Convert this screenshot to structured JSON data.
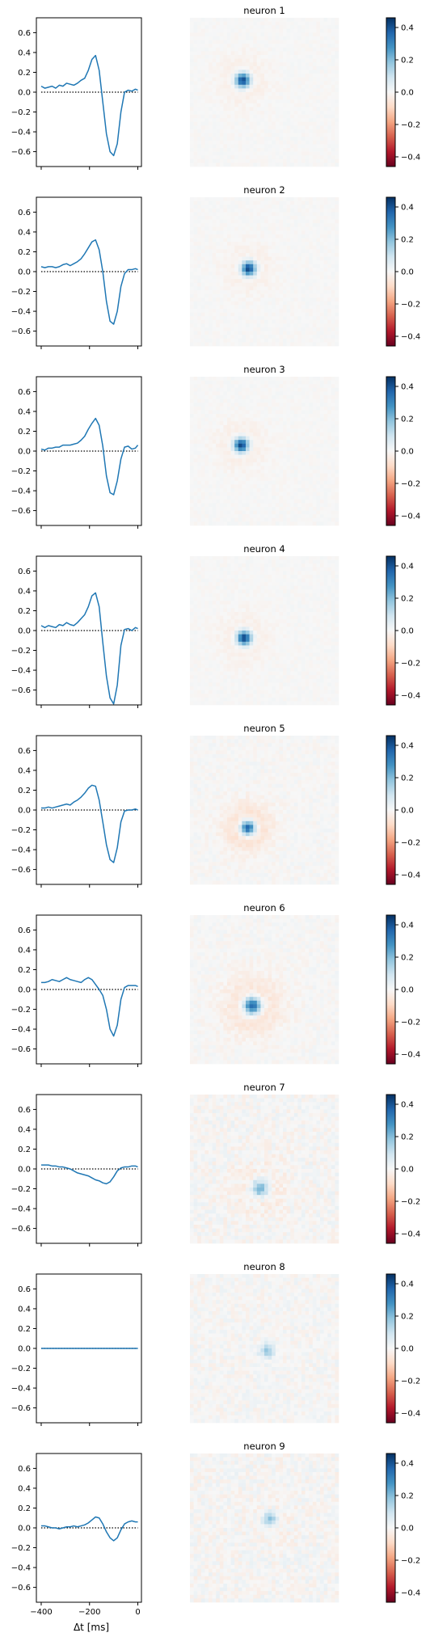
{
  "chart_data": {
    "type": "line",
    "layout": "grid of 9 rows: temporal kernel line plot, spatial receptive field heatmap, colorbar",
    "xlabel": "Δt [ms]",
    "x_ticks": [
      -400,
      -200,
      0
    ],
    "xlim": [
      -420,
      15
    ],
    "y_ticks": [
      0.6,
      0.4,
      0.2,
      0.0,
      -0.2,
      -0.4,
      -0.6
    ],
    "ylim": [
      -0.75,
      0.75
    ],
    "baseline": 0.0,
    "baseline_style": "dotted",
    "line_color": "#1f77b4",
    "colormap": "RdBu",
    "colormap_low": "#67001f",
    "colormap_mid": "#f7f7f7",
    "colormap_high": "#053061",
    "colorbar_ticks": [
      0.4,
      0.2,
      0.0,
      -0.2,
      -0.4
    ],
    "colorbar_range": [
      -0.46,
      0.46
    ],
    "panels": [
      {
        "title": "neuron 1",
        "temporal": {
          "x": [
            -400,
            -385,
            -370,
            -355,
            -340,
            -325,
            -310,
            -295,
            -280,
            -265,
            -250,
            -235,
            -220,
            -205,
            -190,
            -175,
            -160,
            -145,
            -130,
            -115,
            -100,
            -85,
            -70,
            -55,
            -40,
            -25,
            -10,
            0
          ],
          "y": [
            0.06,
            0.04,
            0.05,
            0.06,
            0.04,
            0.07,
            0.06,
            0.09,
            0.08,
            0.07,
            0.09,
            0.12,
            0.14,
            0.22,
            0.33,
            0.37,
            0.22,
            -0.1,
            -0.42,
            -0.6,
            -0.64,
            -0.52,
            -0.2,
            0.0,
            0.02,
            0.01,
            0.03,
            0.02
          ]
        },
        "spatial": {
          "cx": 0.355,
          "cy": 0.42,
          "amp": 0.46,
          "sigma": 0.035,
          "surround": 0.04,
          "noise": 0.012
        }
      },
      {
        "title": "neuron 2",
        "temporal": {
          "x": [
            -400,
            -385,
            -370,
            -355,
            -340,
            -325,
            -310,
            -295,
            -280,
            -265,
            -250,
            -235,
            -220,
            -205,
            -190,
            -175,
            -160,
            -145,
            -130,
            -115,
            -100,
            -85,
            -70,
            -55,
            -40,
            -25,
            -10,
            0
          ],
          "y": [
            0.05,
            0.04,
            0.05,
            0.05,
            0.04,
            0.05,
            0.07,
            0.08,
            0.06,
            0.08,
            0.1,
            0.13,
            0.18,
            0.24,
            0.3,
            0.32,
            0.22,
            0.0,
            -0.3,
            -0.5,
            -0.53,
            -0.4,
            -0.15,
            -0.02,
            0.02,
            0.02,
            0.03,
            0.02
          ]
        },
        "spatial": {
          "cx": 0.395,
          "cy": 0.48,
          "amp": 0.46,
          "sigma": 0.035,
          "surround": 0.04,
          "noise": 0.012
        }
      },
      {
        "title": "neuron 3",
        "temporal": {
          "x": [
            -400,
            -385,
            -370,
            -355,
            -340,
            -325,
            -310,
            -295,
            -280,
            -265,
            -250,
            -235,
            -220,
            -205,
            -190,
            -175,
            -160,
            -145,
            -130,
            -115,
            -100,
            -85,
            -70,
            -55,
            -40,
            -25,
            -10,
            0
          ],
          "y": [
            0.02,
            0.01,
            0.03,
            0.03,
            0.04,
            0.04,
            0.06,
            0.06,
            0.06,
            0.07,
            0.08,
            0.11,
            0.15,
            0.22,
            0.28,
            0.33,
            0.26,
            0.05,
            -0.25,
            -0.42,
            -0.44,
            -0.3,
            -0.08,
            0.04,
            0.05,
            0.02,
            0.03,
            0.06
          ]
        },
        "spatial": {
          "cx": 0.345,
          "cy": 0.46,
          "amp": 0.46,
          "sigma": 0.035,
          "surround": 0.04,
          "noise": 0.012
        }
      },
      {
        "title": "neuron 4",
        "temporal": {
          "x": [
            -400,
            -385,
            -370,
            -355,
            -340,
            -325,
            -310,
            -295,
            -280,
            -265,
            -250,
            -235,
            -220,
            -205,
            -190,
            -175,
            -160,
            -145,
            -130,
            -115,
            -100,
            -85,
            -70,
            -55,
            -40,
            -25,
            -10,
            0
          ],
          "y": [
            0.05,
            0.03,
            0.05,
            0.04,
            0.03,
            0.06,
            0.05,
            0.08,
            0.06,
            0.05,
            0.08,
            0.12,
            0.16,
            0.24,
            0.35,
            0.38,
            0.24,
            -0.12,
            -0.46,
            -0.68,
            -0.74,
            -0.55,
            -0.15,
            0.01,
            0.02,
            0.0,
            0.03,
            0.02
          ]
        },
        "spatial": {
          "cx": 0.365,
          "cy": 0.55,
          "amp": 0.46,
          "sigma": 0.035,
          "surround": 0.04,
          "noise": 0.012
        }
      },
      {
        "title": "neuron 5",
        "temporal": {
          "x": [
            -400,
            -385,
            -370,
            -355,
            -340,
            -325,
            -310,
            -295,
            -280,
            -265,
            -250,
            -235,
            -220,
            -205,
            -190,
            -175,
            -160,
            -145,
            -130,
            -115,
            -100,
            -85,
            -70,
            -55,
            -40,
            -25,
            -10,
            0
          ],
          "y": [
            0.02,
            0.02,
            0.03,
            0.02,
            0.03,
            0.04,
            0.05,
            0.06,
            0.05,
            0.08,
            0.1,
            0.13,
            0.17,
            0.22,
            0.25,
            0.24,
            0.1,
            -0.12,
            -0.35,
            -0.5,
            -0.53,
            -0.38,
            -0.12,
            -0.01,
            0.0,
            0.0,
            0.01,
            0.0
          ]
        },
        "spatial": {
          "cx": 0.39,
          "cy": 0.62,
          "amp": 0.46,
          "sigma": 0.035,
          "surround": 0.09,
          "noise": 0.02
        }
      },
      {
        "title": "neuron 6",
        "temporal": {
          "x": [
            -400,
            -385,
            -370,
            -355,
            -340,
            -325,
            -310,
            -295,
            -280,
            -265,
            -250,
            -235,
            -220,
            -205,
            -190,
            -175,
            -160,
            -145,
            -130,
            -115,
            -100,
            -85,
            -70,
            -55,
            -40,
            -25,
            -10,
            0
          ],
          "y": [
            0.07,
            0.07,
            0.08,
            0.1,
            0.09,
            0.08,
            0.1,
            0.12,
            0.1,
            0.09,
            0.08,
            0.07,
            0.1,
            0.12,
            0.1,
            0.05,
            0.0,
            -0.06,
            -0.2,
            -0.4,
            -0.47,
            -0.36,
            -0.1,
            0.02,
            0.04,
            0.04,
            0.04,
            0.03
          ]
        },
        "spatial": {
          "cx": 0.42,
          "cy": 0.61,
          "amp": 0.44,
          "sigma": 0.042,
          "surround": 0.08,
          "noise": 0.02
        }
      },
      {
        "title": "neuron 7",
        "temporal": {
          "x": [
            -400,
            -385,
            -370,
            -355,
            -340,
            -325,
            -310,
            -295,
            -280,
            -265,
            -250,
            -235,
            -220,
            -205,
            -190,
            -175,
            -160,
            -145,
            -130,
            -115,
            -100,
            -85,
            -70,
            -55,
            -40,
            -25,
            -10,
            0
          ],
          "y": [
            0.04,
            0.04,
            0.04,
            0.03,
            0.03,
            0.02,
            0.02,
            0.01,
            0.0,
            -0.02,
            -0.04,
            -0.05,
            -0.06,
            -0.07,
            -0.09,
            -0.11,
            -0.12,
            -0.14,
            -0.15,
            -0.13,
            -0.08,
            -0.02,
            0.01,
            0.02,
            0.02,
            0.03,
            0.03,
            0.02
          ]
        },
        "spatial": {
          "cx": 0.47,
          "cy": 0.63,
          "amp": 0.26,
          "sigma": 0.04,
          "surround": 0.04,
          "noise": 0.035
        }
      },
      {
        "title": "neuron 8",
        "temporal": {
          "x": [
            -400,
            -385,
            -370,
            -355,
            -340,
            -325,
            -310,
            -295,
            -280,
            -265,
            -250,
            -235,
            -220,
            -205,
            -190,
            -175,
            -160,
            -145,
            -130,
            -115,
            -100,
            -85,
            -70,
            -55,
            -40,
            -25,
            -10,
            0
          ],
          "y": [
            0.0,
            0.0,
            0.0,
            0.0,
            0.0,
            0.0,
            0.0,
            0.0,
            0.0,
            0.0,
            0.0,
            0.0,
            0.0,
            0.0,
            0.0,
            0.0,
            0.0,
            0.0,
            0.0,
            0.0,
            0.0,
            0.0,
            0.0,
            0.0,
            0.0,
            0.0,
            0.0,
            0.0
          ]
        },
        "spatial": {
          "cx": 0.52,
          "cy": 0.52,
          "amp": 0.16,
          "sigma": 0.035,
          "surround": 0.0,
          "noise": 0.03
        }
      },
      {
        "title": "neuron 9",
        "temporal": {
          "x": [
            -400,
            -385,
            -370,
            -355,
            -340,
            -325,
            -310,
            -295,
            -280,
            -265,
            -250,
            -235,
            -220,
            -205,
            -190,
            -175,
            -160,
            -145,
            -130,
            -115,
            -100,
            -85,
            -70,
            -55,
            -40,
            -25,
            -10,
            0
          ],
          "y": [
            0.02,
            0.02,
            0.01,
            0.0,
            0.0,
            -0.01,
            0.0,
            0.01,
            0.01,
            0.02,
            0.01,
            0.02,
            0.03,
            0.05,
            0.08,
            0.11,
            0.1,
            0.04,
            -0.04,
            -0.1,
            -0.13,
            -0.1,
            -0.02,
            0.04,
            0.06,
            0.07,
            0.06,
            0.06
          ]
        },
        "spatial": {
          "cx": 0.54,
          "cy": 0.44,
          "amp": 0.2,
          "sigma": 0.035,
          "surround": 0.02,
          "noise": 0.035
        }
      }
    ]
  }
}
